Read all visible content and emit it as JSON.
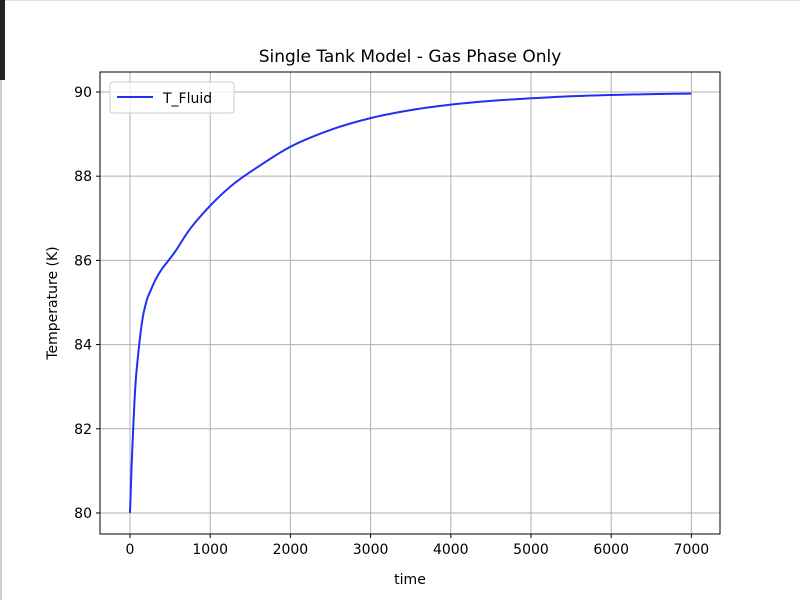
{
  "chart_data": {
    "type": "line",
    "title": "Single Tank Model - Gas Phase Only",
    "xlabel": "time",
    "ylabel": "Temperature (K)",
    "xlim": [
      -374,
      7357
    ],
    "ylim": [
      79.5,
      90.475
    ],
    "xticks": [
      0,
      1000,
      2000,
      3000,
      4000,
      5000,
      6000,
      7000
    ],
    "yticks": [
      80,
      82,
      84,
      86,
      88,
      90
    ],
    "grid": true,
    "legend_position": "upper-left",
    "series": [
      {
        "name": "T_Fluid",
        "color": "#1f2ff5",
        "x": [
          0,
          20,
          40,
          70,
          115,
          160,
          210,
          250,
          320,
          400,
          560,
          750,
          1000,
          1250,
          1500,
          2000,
          2500,
          3000,
          3500,
          4000,
          4500,
          5000,
          5500,
          6000,
          6500,
          7000
        ],
        "y": [
          80,
          81.1,
          82.0,
          83.1,
          84.0,
          84.65,
          85.06,
          85.25,
          85.55,
          85.8,
          86.2,
          86.75,
          87.3,
          87.75,
          88.1,
          88.7,
          89.1,
          89.38,
          89.57,
          89.7,
          89.79,
          89.85,
          89.9,
          89.93,
          89.95,
          89.96
        ]
      }
    ]
  }
}
